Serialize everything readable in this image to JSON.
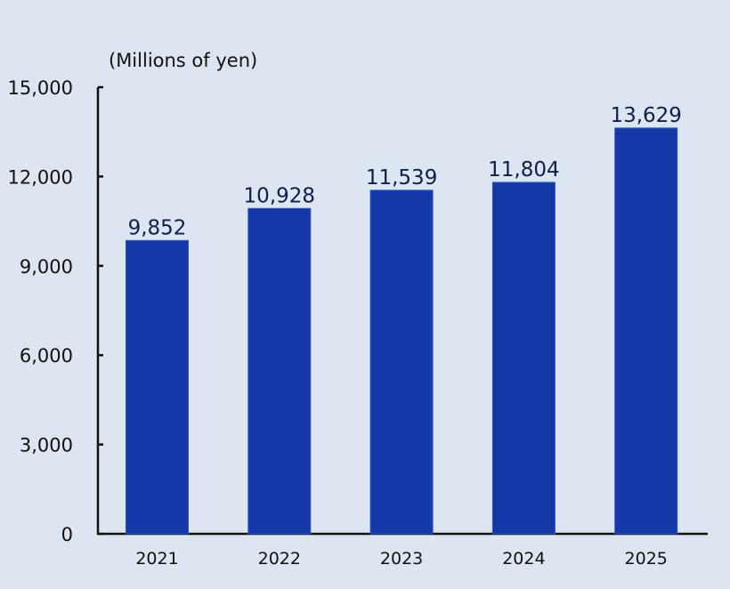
{
  "chart_data": {
    "type": "bar",
    "title": "",
    "unit_label": "(Millions of yen)",
    "xlabel": "",
    "ylabel": "",
    "categories": [
      "2021",
      "2022",
      "2023",
      "2024",
      "2025"
    ],
    "values": [
      9852,
      10928,
      11539,
      11804,
      13629
    ],
    "data_labels": [
      "9,852",
      "10,928",
      "11,539",
      "11,804",
      "13,629"
    ],
    "ylim": [
      0,
      15000
    ],
    "yticks": [
      0,
      3000,
      6000,
      9000,
      12000,
      15000
    ],
    "ytick_labels": [
      "0",
      "3,000",
      "6,000",
      "9,000",
      "12,000",
      "15,000"
    ],
    "grid": false,
    "legend": "none",
    "colors": {
      "bar": "#1538a8",
      "bar_edge": "#2d55c8",
      "background": "#dde5f0",
      "axis": "#111111"
    }
  }
}
